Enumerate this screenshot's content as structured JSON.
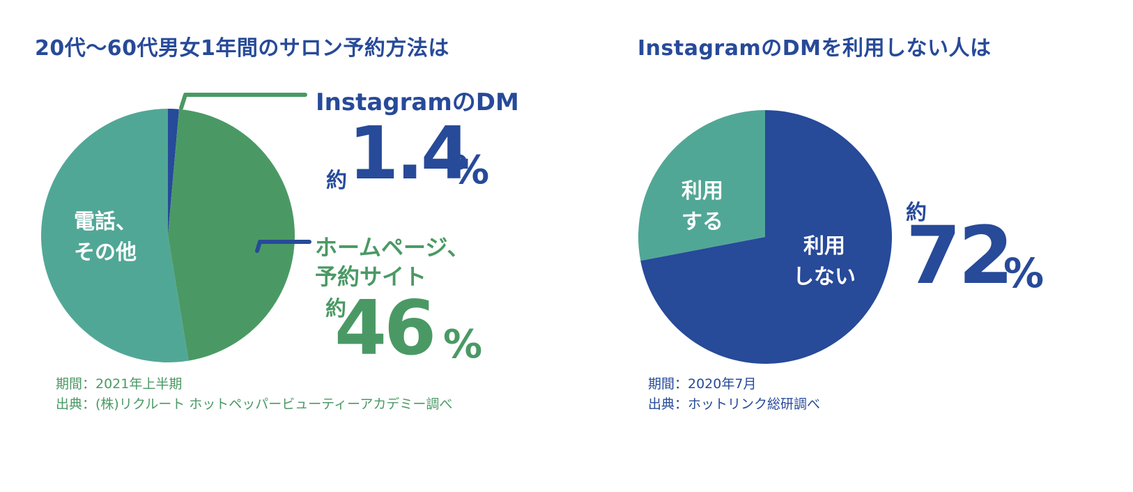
{
  "colors": {
    "blue": "#274a99",
    "green": "#4a9964",
    "teal": "#51a796",
    "white": "#ffffff"
  },
  "chart_data": [
    {
      "type": "pie",
      "title": "20代〜60代男女1年間のサロン予約方法は",
      "slices": [
        {
          "label": "InstagramのDM",
          "value": 1.4,
          "color": "#274a99"
        },
        {
          "label": "ホームページ、予約サイト",
          "value": 46,
          "color": "#4a9964"
        },
        {
          "label": "電話、その他",
          "value": 52.6,
          "color": "#51a796"
        }
      ],
      "callouts": [
        {
          "category": "InstagramのDM",
          "prefix": "約",
          "value": "1.4",
          "unit": "%"
        },
        {
          "category_lines": [
            "ホームページ、",
            "予約サイト"
          ],
          "prefix": "約",
          "value": "46",
          "unit": "%"
        }
      ],
      "inner_label_lines": [
        "電話、",
        "その他"
      ],
      "source_lines": [
        "期間：2021年上半期",
        "出典：(株)リクルート ホットペッパービューティーアカデミー調べ"
      ]
    },
    {
      "type": "pie",
      "title": "InstagramのDMを利用しない人は",
      "slices": [
        {
          "label": "利用しない",
          "value": 72,
          "color": "#274a99"
        },
        {
          "label": "利用する",
          "value": 28,
          "color": "#51a796"
        }
      ],
      "callouts": [
        {
          "prefix": "約",
          "value": "72",
          "unit": "%"
        }
      ],
      "inner_labels": {
        "not_use": [
          "利用",
          "しない"
        ],
        "use": [
          "利用",
          "する"
        ]
      },
      "source_lines": [
        "期間：2020年7月",
        "出典：ホットリンク総研調べ"
      ]
    }
  ]
}
